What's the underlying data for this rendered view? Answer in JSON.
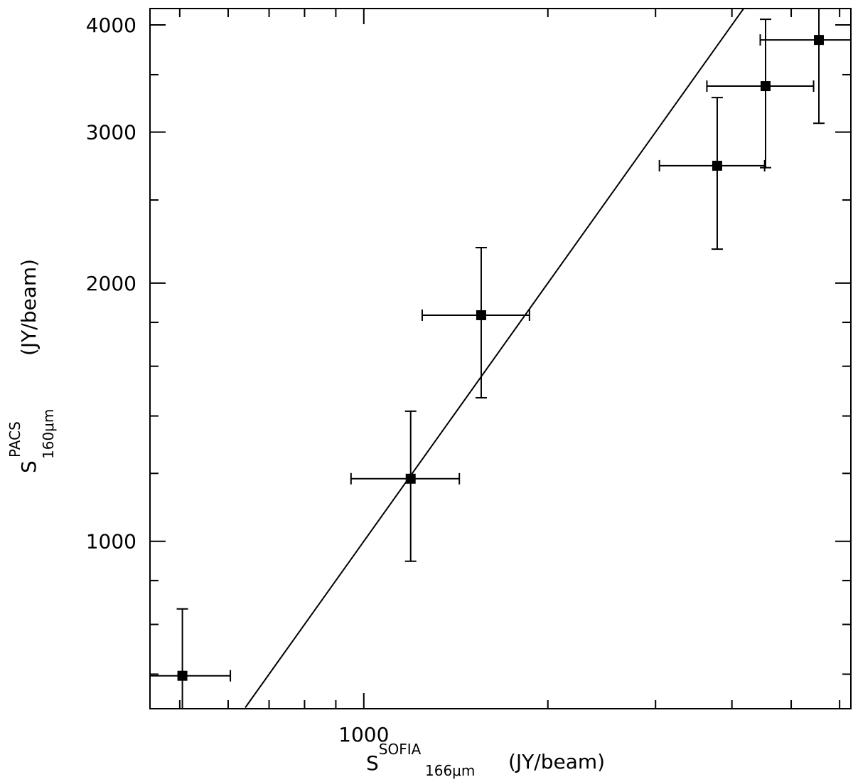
{
  "chart_data": {
    "type": "scatter",
    "xscale": "log",
    "yscale": "log",
    "xlim": [
      447,
      6260
    ],
    "ylim": [
      638,
      4180
    ],
    "xticks": [
      1000
    ],
    "yticks": [
      1000,
      2000,
      3000,
      4000
    ],
    "xminor": [
      500,
      600,
      700,
      800,
      900,
      2000,
      3000,
      4000,
      5000,
      6000
    ],
    "yminor": [
      700,
      800,
      900,
      1200,
      1400,
      1600,
      1800,
      2500,
      3500
    ],
    "xlabel": {
      "base": "S",
      "sup": "SOFIA",
      "sub": "166μm",
      "unit": "(JY/beam)"
    },
    "ylabel": {
      "base": "S",
      "sup": "PACS",
      "sub": "160μm",
      "unit": "(JY/beam)"
    },
    "color": "#000000",
    "x": [
      505,
      1193,
      1556,
      3784,
      4540,
      5550
    ],
    "y": [
      697,
      1183,
      1835,
      2741,
      3394,
      3842
    ],
    "xerr": [
      100,
      240,
      310,
      740,
      900,
      1100
    ],
    "yerr": [
      137,
      235,
      365,
      550,
      667,
      770
    ],
    "fit_line": {
      "x": [
        640,
        4180
      ],
      "y": [
        640,
        4180
      ]
    }
  }
}
